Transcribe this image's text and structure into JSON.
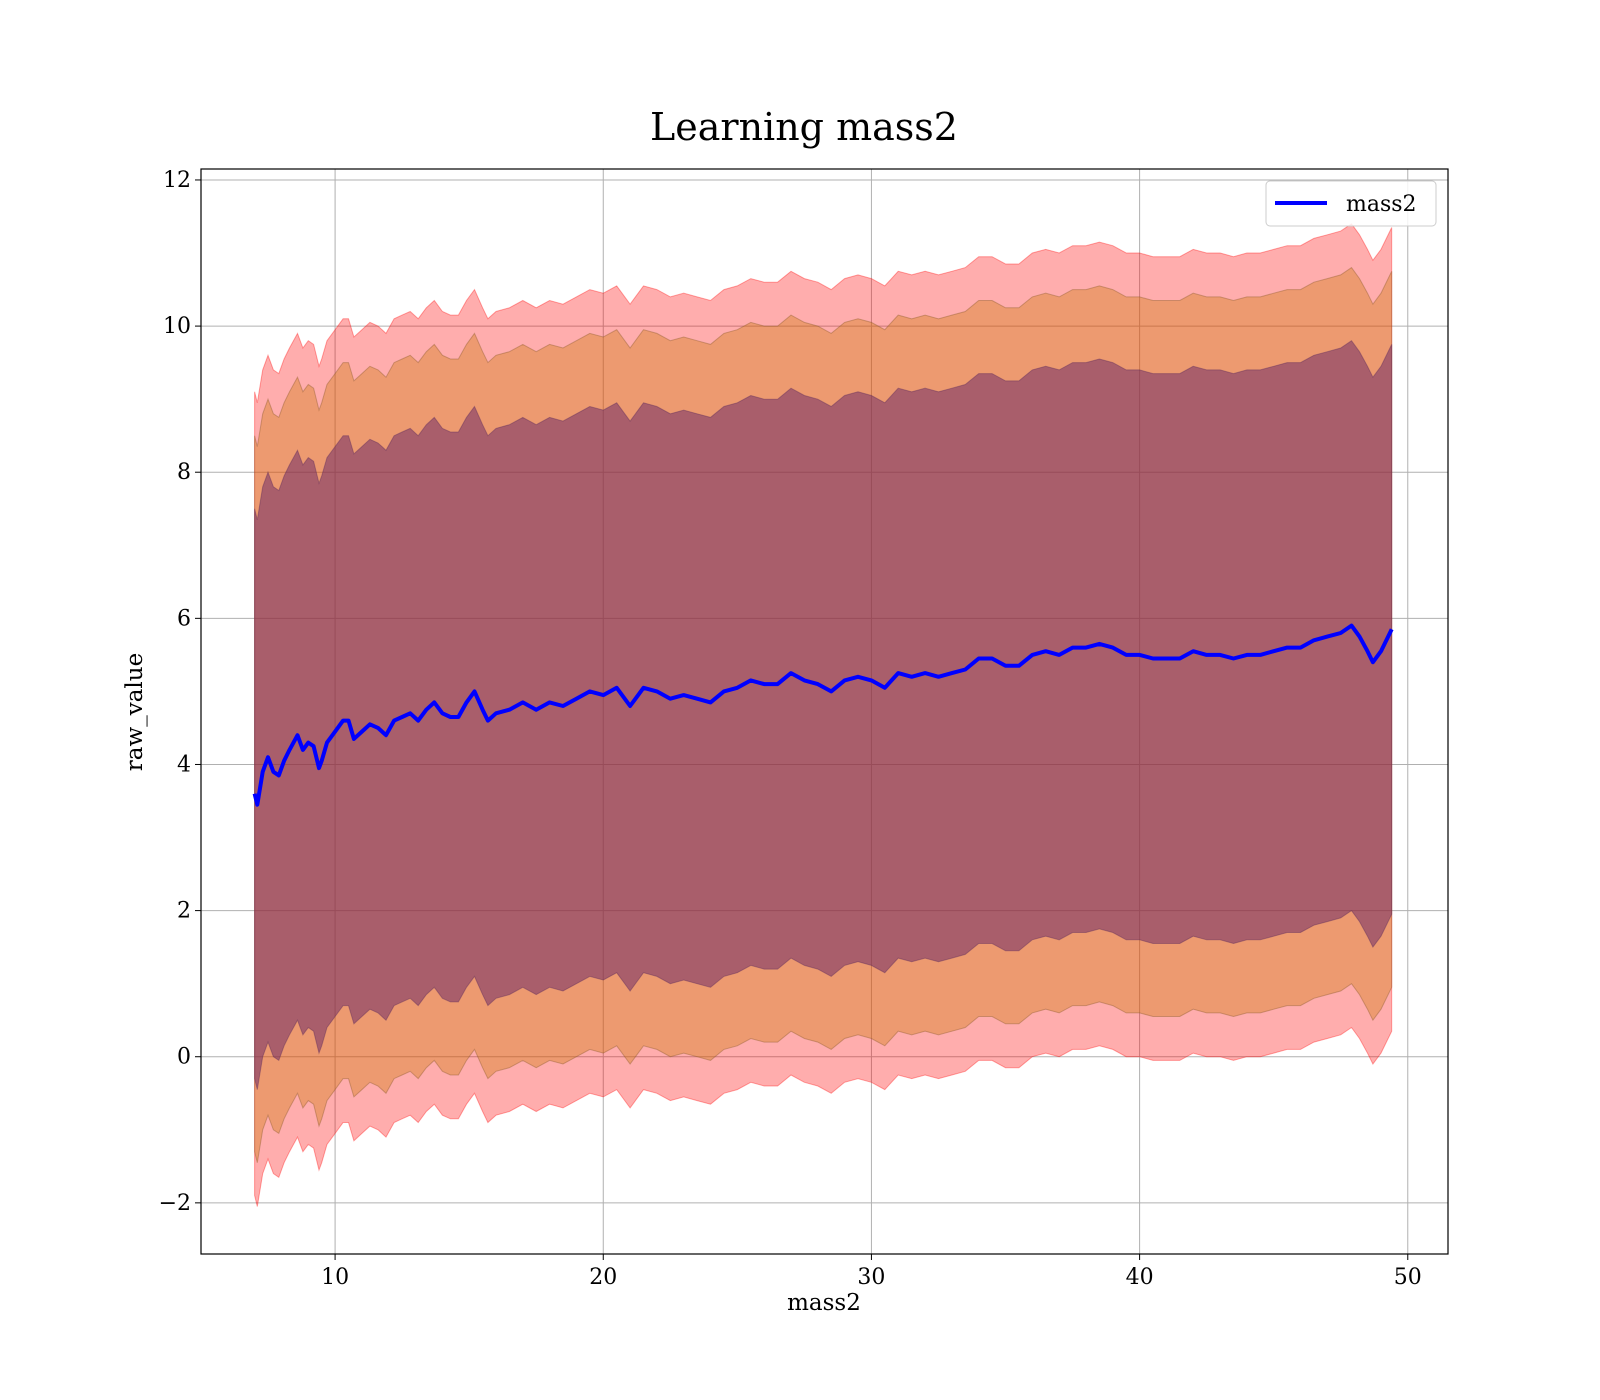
{
  "chart_data": {
    "type": "line",
    "title": "Learning mass2",
    "xlabel": "mass2",
    "ylabel": "raw_value",
    "xlim": [
      5,
      51.5
    ],
    "ylim": [
      -2.7,
      12.15
    ],
    "xticks": [
      10,
      20,
      30,
      40,
      50
    ],
    "yticks": [
      -2,
      0,
      2,
      4,
      6,
      8,
      10,
      12
    ],
    "xtick_labels": [
      "10",
      "20",
      "30",
      "40",
      "50"
    ],
    "ytick_labels": [
      "−2",
      "0",
      "2",
      "4",
      "6",
      "8",
      "10",
      "12"
    ],
    "grid": true,
    "legend": {
      "position": "upper right",
      "entries": [
        "mass2"
      ]
    },
    "colors": {
      "line": "#0000ff",
      "band_outer": "#ff0000",
      "band_middle": "#cc7700",
      "band_inner": "#662266"
    },
    "band_half_widths": {
      "outer": 5.5,
      "middle": 4.9,
      "inner": 3.9
    },
    "series": [
      {
        "name": "mass2",
        "x": [
          7.0,
          7.1,
          7.3,
          7.5,
          7.7,
          7.9,
          8.1,
          8.3,
          8.6,
          8.8,
          9.0,
          9.2,
          9.4,
          9.5,
          9.7,
          10.0,
          10.3,
          10.5,
          10.7,
          11.0,
          11.3,
          11.6,
          11.9,
          12.2,
          12.5,
          12.8,
          13.1,
          13.4,
          13.7,
          14.0,
          14.3,
          14.6,
          14.9,
          15.2,
          15.5,
          15.7,
          16.0,
          16.5,
          17.0,
          17.5,
          18.0,
          18.5,
          19.0,
          19.5,
          20.0,
          20.5,
          21.0,
          21.5,
          22.0,
          22.5,
          23.0,
          23.5,
          24.0,
          24.5,
          25.0,
          25.5,
          26.0,
          26.5,
          27.0,
          27.5,
          28.0,
          28.5,
          29.0,
          29.5,
          30.0,
          30.5,
          31.0,
          31.5,
          32.0,
          32.5,
          33.0,
          33.5,
          34.0,
          34.5,
          35.0,
          35.5,
          36.0,
          36.5,
          37.0,
          37.5,
          38.0,
          38.5,
          39.0,
          39.5,
          40.0,
          40.5,
          41.0,
          41.5,
          42.0,
          42.5,
          43.0,
          43.5,
          44.0,
          44.5,
          45.0,
          45.5,
          46.0,
          46.5,
          47.0,
          47.5,
          47.9,
          48.2,
          48.5,
          48.7,
          49.0,
          49.4
        ],
        "y": [
          3.6,
          3.45,
          3.9,
          4.1,
          3.9,
          3.85,
          4.05,
          4.2,
          4.4,
          4.2,
          4.3,
          4.25,
          3.95,
          4.05,
          4.3,
          4.45,
          4.6,
          4.6,
          4.35,
          4.45,
          4.55,
          4.5,
          4.4,
          4.6,
          4.65,
          4.7,
          4.6,
          4.75,
          4.85,
          4.7,
          4.65,
          4.65,
          4.85,
          5.0,
          4.75,
          4.6,
          4.7,
          4.75,
          4.85,
          4.75,
          4.85,
          4.8,
          4.9,
          5.0,
          4.95,
          5.05,
          4.8,
          5.05,
          5.0,
          4.9,
          4.95,
          4.9,
          4.85,
          5.0,
          5.05,
          5.15,
          5.1,
          5.1,
          5.25,
          5.15,
          5.1,
          5.0,
          5.15,
          5.2,
          5.15,
          5.05,
          5.25,
          5.2,
          5.25,
          5.2,
          5.25,
          5.3,
          5.45,
          5.45,
          5.35,
          5.35,
          5.5,
          5.55,
          5.5,
          5.6,
          5.6,
          5.65,
          5.6,
          5.5,
          5.5,
          5.45,
          5.45,
          5.45,
          5.55,
          5.5,
          5.5,
          5.45,
          5.5,
          5.5,
          5.55,
          5.6,
          5.6,
          5.7,
          5.75,
          5.8,
          5.9,
          5.75,
          5.55,
          5.4,
          5.55,
          5.85
        ]
      }
    ]
  }
}
